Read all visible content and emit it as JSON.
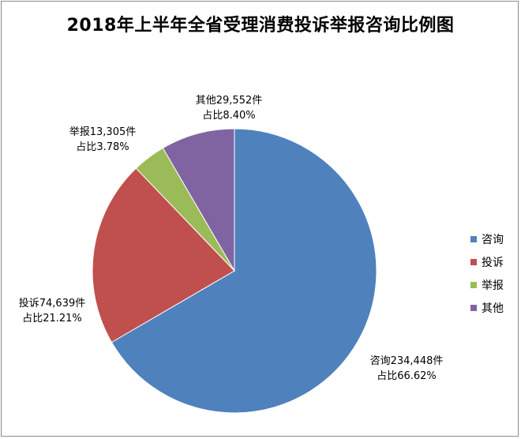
{
  "chart_data": {
    "type": "pie",
    "title": "2018年上半年全省受理消费投诉举报咨询比例图",
    "legend_position": "right",
    "slices": [
      {
        "name": "咨询",
        "value": 234448,
        "percent": 66.62,
        "label_line1": "咨询234,448件",
        "label_line2": "占比66.62%",
        "color": "#4F81BD"
      },
      {
        "name": "投诉",
        "value": 74639,
        "percent": 21.21,
        "label_line1": "投诉74,639件",
        "label_line2": "占比21.21%",
        "color": "#C0504D"
      },
      {
        "name": "举报",
        "value": 13305,
        "percent": 3.78,
        "label_line1": "举报13,305件",
        "label_line2": "占比3.78%",
        "color": "#9BBB59"
      },
      {
        "name": "其他",
        "value": 29552,
        "percent": 8.4,
        "label_line1": "其他29,552件",
        "label_line2": "占比8.40%",
        "color": "#8064A2"
      }
    ]
  }
}
